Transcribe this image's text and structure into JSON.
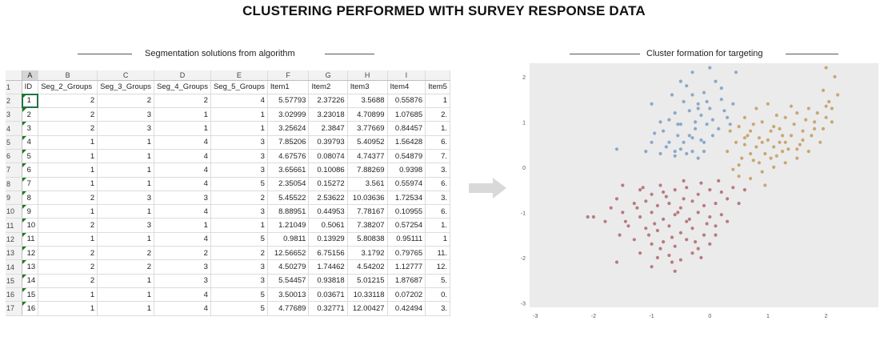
{
  "title": "CLUSTERING PERFORMED WITH SURVEY RESPONSE DATA",
  "left_caption": "Segmentation solutions from algorithm",
  "right_caption": "Cluster formation for targeting",
  "sheet": {
    "column_letters": [
      "A",
      "B",
      "C",
      "D",
      "E",
      "F",
      "G",
      "H",
      "I",
      ""
    ],
    "headers": [
      "ID",
      "Seg_2_Groups",
      "Seg_3_Groups",
      "Seg_4_Groups",
      "Seg_5_Groups",
      "Item1",
      "Item2",
      "Item3",
      "Item4",
      "Item5"
    ],
    "row_numbers": [
      "1",
      "2",
      "3",
      "4",
      "5",
      "6",
      "7",
      "8",
      "9",
      "10",
      "11",
      "12",
      "13",
      "14",
      "15",
      "16",
      "17"
    ],
    "rows": [
      [
        "1",
        "2",
        "2",
        "2",
        "4",
        "5.57793",
        "2.37226",
        "3.5688",
        "0.55876",
        "1"
      ],
      [
        "2",
        "2",
        "3",
        "1",
        "1",
        "3.02999",
        "3.23018",
        "4.70899",
        "1.07685",
        "2."
      ],
      [
        "3",
        "2",
        "3",
        "1",
        "1",
        "3.25624",
        "2.3847",
        "3.77669",
        "0.84457",
        "1."
      ],
      [
        "4",
        "1",
        "1",
        "4",
        "3",
        "7.85206",
        "0.39793",
        "5.40952",
        "1.56428",
        "6."
      ],
      [
        "5",
        "1",
        "1",
        "4",
        "3",
        "4.67576",
        "0.08074",
        "4.74377",
        "0.54879",
        "7."
      ],
      [
        "6",
        "1",
        "1",
        "4",
        "3",
        "3.65661",
        "0.10086",
        "7.88269",
        "0.9398",
        "3."
      ],
      [
        "7",
        "1",
        "1",
        "4",
        "5",
        "2.35054",
        "0.15272",
        "3.561",
        "0.55974",
        "6."
      ],
      [
        "8",
        "2",
        "3",
        "3",
        "2",
        "5.45522",
        "2.53622",
        "10.03636",
        "1.72534",
        "3."
      ],
      [
        "9",
        "1",
        "1",
        "4",
        "3",
        "8.88951",
        "0.44953",
        "7.78167",
        "0.10955",
        "6."
      ],
      [
        "10",
        "2",
        "3",
        "1",
        "1",
        "1.21049",
        "0.5061",
        "7.38207",
        "0.57254",
        "1."
      ],
      [
        "11",
        "1",
        "1",
        "4",
        "5",
        "0.9811",
        "0.13929",
        "5.80838",
        "0.95111",
        "1"
      ],
      [
        "12",
        "2",
        "2",
        "2",
        "2",
        "12.56652",
        "6.75156",
        "3.1792",
        "0.79765",
        "11."
      ],
      [
        "13",
        "2",
        "2",
        "3",
        "3",
        "4.50279",
        "1.74462",
        "4.54202",
        "1.12777",
        "12."
      ],
      [
        "14",
        "2",
        "1",
        "3",
        "3",
        "5.54457",
        "0.93818",
        "5.01215",
        "1.87687",
        "5."
      ],
      [
        "15",
        "1",
        "1",
        "4",
        "5",
        "3.50013",
        "0.03671",
        "10.33118",
        "0.07202",
        "0."
      ],
      [
        "16",
        "1",
        "1",
        "4",
        "5",
        "4.77689",
        "0.32771",
        "12.00427",
        "0.42494",
        "3."
      ]
    ]
  },
  "chart_data": {
    "type": "scatter",
    "title": "",
    "xlabel": "",
    "ylabel": "",
    "xlim": [
      -3.1,
      2.9
    ],
    "ylim": [
      -3.1,
      2.3
    ],
    "x_ticks": [
      "-3",
      "-2",
      "-1",
      "0",
      "1",
      "2"
    ],
    "y_ticks": [
      "2",
      "1",
      "0",
      "-1",
      "-2",
      "-3"
    ],
    "grid": false,
    "background": "#ebebeb",
    "series_colors": [
      "#8aa9c9",
      "#c9a774",
      "#b87b80"
    ],
    "series": [
      {
        "points": [
          [
            -0.5,
            1.9
          ],
          [
            -0.3,
            1.6
          ],
          [
            -0.1,
            1.65
          ],
          [
            0.1,
            1.9
          ],
          [
            -0.45,
            1.45
          ],
          [
            -0.2,
            1.4
          ],
          [
            0.0,
            1.3
          ],
          [
            0.2,
            1.5
          ],
          [
            -0.6,
            1.2
          ],
          [
            -0.35,
            1.25
          ],
          [
            -0.15,
            1.15
          ],
          [
            0.05,
            1.05
          ],
          [
            0.25,
            1.25
          ],
          [
            -0.7,
            1.05
          ],
          [
            -0.5,
            0.95
          ],
          [
            -0.25,
            0.85
          ],
          [
            -0.05,
            0.95
          ],
          [
            0.15,
            0.85
          ],
          [
            -0.8,
            0.8
          ],
          [
            -0.55,
            0.7
          ],
          [
            -0.3,
            0.65
          ],
          [
            -0.1,
            0.55
          ],
          [
            -1.0,
            0.55
          ],
          [
            -0.75,
            0.45
          ],
          [
            -0.5,
            0.4
          ],
          [
            -0.3,
            0.35
          ],
          [
            -0.1,
            0.35
          ],
          [
            -1.1,
            0.35
          ],
          [
            -0.85,
            0.3
          ],
          [
            -0.6,
            0.25
          ],
          [
            -0.4,
            0.3
          ],
          [
            -0.2,
            0.2
          ],
          [
            -1.6,
            0.4
          ],
          [
            -1.0,
            1.4
          ],
          [
            -0.4,
            1.8
          ],
          [
            0.3,
            1.1
          ],
          [
            0.4,
            1.4
          ],
          [
            -0.65,
            1.6
          ],
          [
            -0.95,
            0.75
          ],
          [
            -0.45,
            0.55
          ],
          [
            -0.25,
            1.0
          ],
          [
            0.05,
            0.7
          ],
          [
            -0.7,
            0.55
          ],
          [
            -0.15,
            0.6
          ],
          [
            -0.55,
            0.95
          ],
          [
            0.2,
            1.75
          ],
          [
            -0.3,
            2.1
          ],
          [
            -0.05,
            1.45
          ],
          [
            0.35,
            0.95
          ],
          [
            -0.85,
            1.0
          ],
          [
            -0.35,
            0.7
          ],
          [
            -0.6,
            0.35
          ],
          [
            0.0,
            2.2
          ],
          [
            0.45,
            2.1
          ],
          [
            -0.2,
            1.3
          ]
        ]
      },
      {
        "points": [
          [
            0.5,
            0.9
          ],
          [
            0.7,
            0.8
          ],
          [
            0.9,
            1.0
          ],
          [
            1.1,
            0.9
          ],
          [
            1.3,
            1.1
          ],
          [
            1.5,
            1.2
          ],
          [
            1.7,
            1.3
          ],
          [
            0.6,
            0.5
          ],
          [
            0.8,
            0.45
          ],
          [
            1.0,
            0.6
          ],
          [
            1.2,
            0.55
          ],
          [
            1.4,
            0.7
          ],
          [
            1.6,
            0.8
          ],
          [
            1.8,
            1.0
          ],
          [
            2.0,
            1.1
          ],
          [
            2.1,
            1.3
          ],
          [
            0.55,
            0.2
          ],
          [
            0.75,
            0.15
          ],
          [
            0.95,
            0.3
          ],
          [
            1.15,
            0.25
          ],
          [
            1.35,
            0.4
          ],
          [
            1.55,
            0.5
          ],
          [
            1.75,
            0.7
          ],
          [
            1.95,
            0.85
          ],
          [
            2.1,
            1.0
          ],
          [
            0.5,
            -0.2
          ],
          [
            0.7,
            -0.25
          ],
          [
            0.9,
            -0.1
          ],
          [
            1.1,
            0.0
          ],
          [
            1.3,
            0.1
          ],
          [
            1.5,
            0.2
          ],
          [
            1.7,
            0.35
          ],
          [
            1.9,
            0.55
          ],
          [
            0.45,
            0.55
          ],
          [
            0.65,
            0.7
          ],
          [
            0.85,
            0.65
          ],
          [
            1.05,
            0.8
          ],
          [
            1.25,
            0.7
          ],
          [
            1.45,
            0.95
          ],
          [
            1.65,
            1.05
          ],
          [
            1.85,
            1.2
          ],
          [
            2.05,
            1.45
          ],
          [
            2.2,
            1.6
          ],
          [
            2.15,
            2.0
          ],
          [
            2.0,
            2.2
          ],
          [
            0.8,
            1.3
          ],
          [
            1.0,
            1.4
          ],
          [
            0.6,
            1.1
          ],
          [
            0.4,
            -0.05
          ],
          [
            0.3,
            0.35
          ],
          [
            0.95,
            -0.4
          ],
          [
            0.35,
            0.8
          ],
          [
            1.25,
            0.35
          ],
          [
            1.4,
            1.35
          ],
          [
            0.7,
            0.3
          ],
          [
            1.6,
            0.6
          ],
          [
            1.15,
            1.15
          ],
          [
            0.5,
            0.05
          ],
          [
            1.8,
            0.85
          ],
          [
            2.0,
            1.35
          ],
          [
            0.9,
            0.55
          ],
          [
            1.3,
            0.55
          ],
          [
            0.75,
            0.95
          ],
          [
            1.05,
            0.2
          ],
          [
            1.5,
            0.4
          ],
          [
            0.85,
            0.1
          ],
          [
            1.2,
            0.85
          ],
          [
            1.95,
            1.7
          ],
          [
            0.6,
            0.65
          ],
          [
            1.1,
            0.45
          ]
        ]
      },
      {
        "points": [
          [
            -1.5,
            -0.4
          ],
          [
            -1.2,
            -0.5
          ],
          [
            -1.0,
            -0.6
          ],
          [
            -0.8,
            -0.55
          ],
          [
            -0.6,
            -0.5
          ],
          [
            -0.4,
            -0.45
          ],
          [
            -0.2,
            -0.6
          ],
          [
            0.0,
            -0.5
          ],
          [
            0.2,
            -0.55
          ],
          [
            0.4,
            -0.45
          ],
          [
            -1.6,
            -0.7
          ],
          [
            -1.3,
            -0.8
          ],
          [
            -1.1,
            -0.75
          ],
          [
            -0.9,
            -0.85
          ],
          [
            -0.7,
            -0.8
          ],
          [
            -0.5,
            -0.9
          ],
          [
            -0.3,
            -0.75
          ],
          [
            -0.1,
            -0.85
          ],
          [
            0.1,
            -0.8
          ],
          [
            0.3,
            -0.7
          ],
          [
            -1.5,
            -1.0
          ],
          [
            -1.2,
            -1.1
          ],
          [
            -1.0,
            -1.0
          ],
          [
            -0.8,
            -1.15
          ],
          [
            -0.6,
            -1.05
          ],
          [
            -0.4,
            -1.2
          ],
          [
            -0.2,
            -1.0
          ],
          [
            0.0,
            -1.1
          ],
          [
            0.2,
            -1.05
          ],
          [
            -1.4,
            -1.3
          ],
          [
            -1.1,
            -1.35
          ],
          [
            -0.9,
            -1.4
          ],
          [
            -0.7,
            -1.3
          ],
          [
            -0.5,
            -1.45
          ],
          [
            -0.3,
            -1.35
          ],
          [
            -0.1,
            -1.5
          ],
          [
            0.1,
            -1.3
          ],
          [
            -1.3,
            -1.6
          ],
          [
            -1.0,
            -1.7
          ],
          [
            -0.8,
            -1.65
          ],
          [
            -0.6,
            -1.75
          ],
          [
            -0.4,
            -1.6
          ],
          [
            -0.2,
            -1.8
          ],
          [
            0.0,
            -1.7
          ],
          [
            -1.2,
            -1.9
          ],
          [
            -0.9,
            -2.0
          ],
          [
            -0.7,
            -1.95
          ],
          [
            -0.5,
            -2.05
          ],
          [
            -0.3,
            -1.9
          ],
          [
            -1.0,
            -2.2
          ],
          [
            -0.6,
            -2.3
          ],
          [
            -1.6,
            -2.1
          ],
          [
            -2.0,
            -1.1
          ],
          [
            -2.1,
            -1.1
          ],
          [
            -1.8,
            -1.2
          ],
          [
            -1.7,
            -0.9
          ],
          [
            -1.55,
            -1.5
          ],
          [
            0.3,
            -1.2
          ],
          [
            0.5,
            -0.8
          ],
          [
            0.6,
            -0.5
          ],
          [
            -0.85,
            -0.4
          ],
          [
            -0.45,
            -0.3
          ],
          [
            -0.15,
            -0.35
          ],
          [
            0.15,
            -0.3
          ],
          [
            -0.95,
            -1.25
          ],
          [
            -0.65,
            -1.55
          ],
          [
            -0.35,
            -1.15
          ],
          [
            -0.05,
            -1.25
          ],
          [
            -1.25,
            -0.9
          ],
          [
            -0.75,
            -0.65
          ],
          [
            -0.55,
            -1.0
          ],
          [
            -0.25,
            -1.65
          ],
          [
            -1.05,
            -1.5
          ],
          [
            -0.85,
            -1.8
          ],
          [
            -1.45,
            -1.2
          ],
          [
            -0.15,
            -2.0
          ],
          [
            0.1,
            -1.5
          ],
          [
            -0.45,
            -0.7
          ],
          [
            -1.15,
            -0.45
          ],
          [
            -0.65,
            -2.1
          ]
        ]
      }
    ]
  }
}
